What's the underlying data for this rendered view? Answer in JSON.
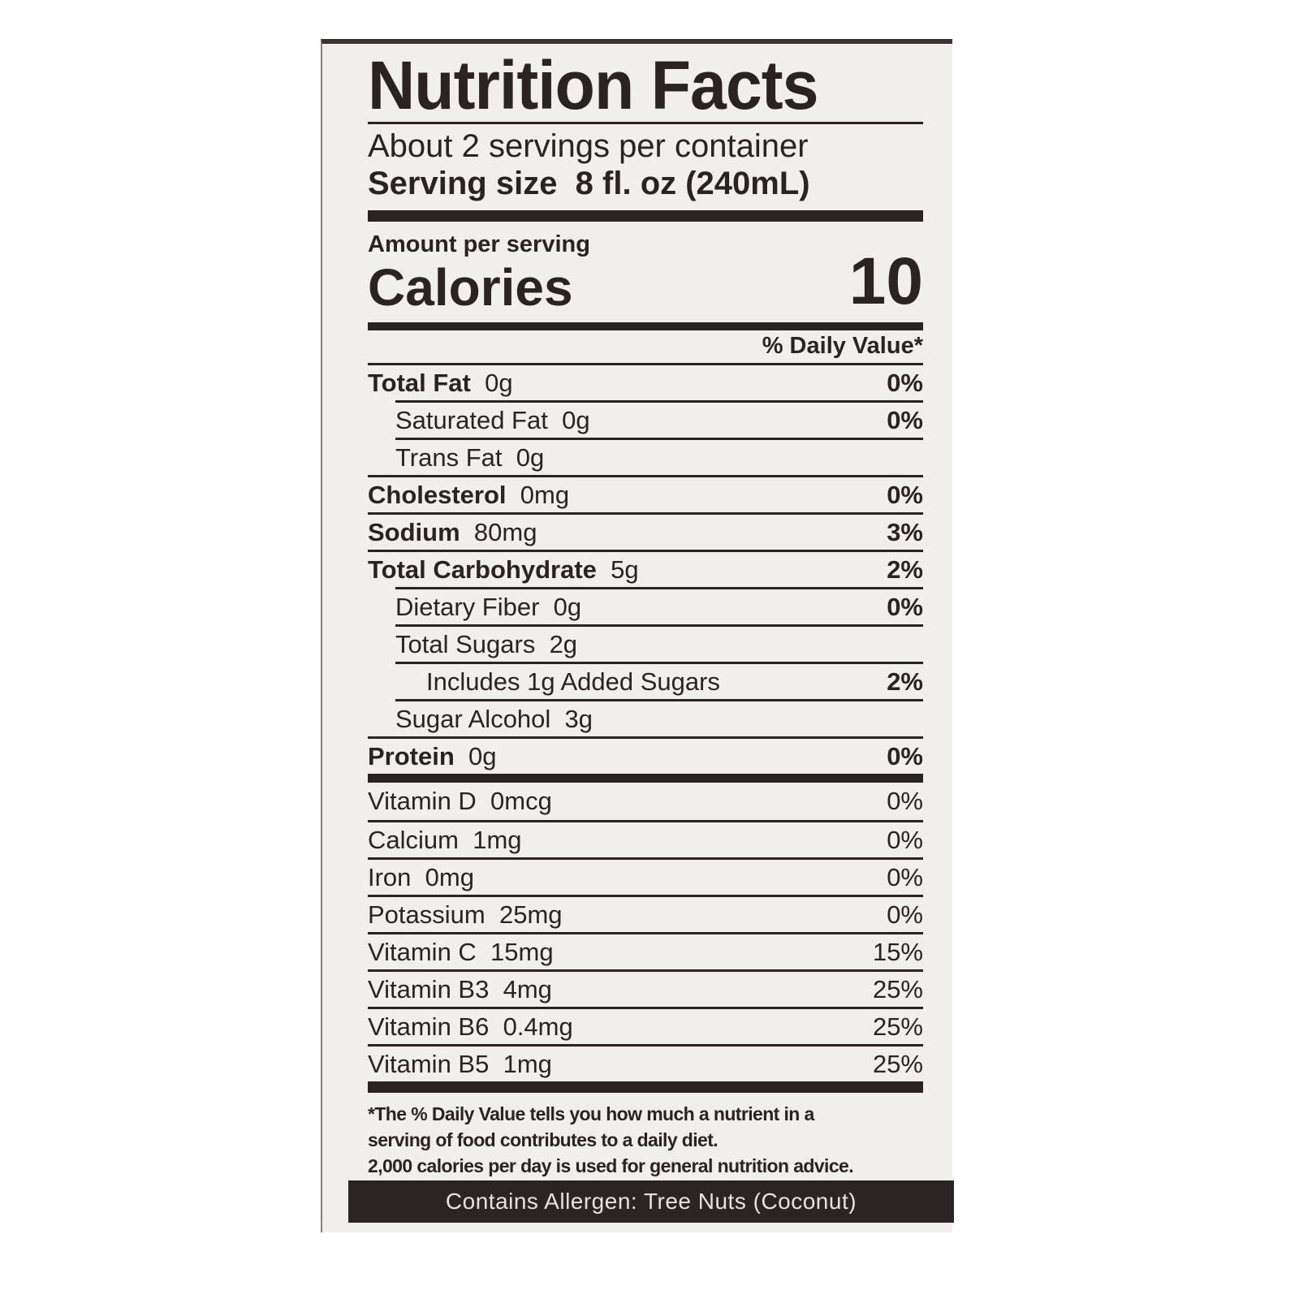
{
  "title": "Nutrition Facts",
  "servings_per_container": "About 2 servings per container",
  "serving_size_label": "Serving size",
  "serving_size_value": "8 fl. oz (240mL)",
  "amount_per_serving": "Amount per serving",
  "calories_label": "Calories",
  "calories_value": "10",
  "daily_value_header": "% Daily Value*",
  "nutrients": [
    {
      "name": "Total Fat",
      "amount": "0g",
      "dv": "0%"
    },
    {
      "name": "Saturated Fat",
      "amount": "0g",
      "dv": "0%"
    },
    {
      "name": "Trans Fat",
      "amount": "0g",
      "dv": ""
    },
    {
      "name": "Cholesterol",
      "amount": "0mg",
      "dv": "0%"
    },
    {
      "name": "Sodium",
      "amount": "80mg",
      "dv": "3%"
    },
    {
      "name": "Total Carbohydrate",
      "amount": "5g",
      "dv": "2%"
    },
    {
      "name": "Dietary Fiber",
      "amount": "0g",
      "dv": "0%"
    },
    {
      "name": "Total Sugars",
      "amount": "2g",
      "dv": ""
    },
    {
      "name": "Includes 1g Added Sugars",
      "amount": "",
      "dv": "2%"
    },
    {
      "name": "Sugar Alcohol",
      "amount": "3g",
      "dv": ""
    },
    {
      "name": "Protein",
      "amount": "0g",
      "dv": "0%"
    }
  ],
  "vitamins": [
    {
      "name": "Vitamin D",
      "amount": "0mcg",
      "dv": "0%"
    },
    {
      "name": "Calcium",
      "amount": "1mg",
      "dv": "0%"
    },
    {
      "name": "Iron",
      "amount": "0mg",
      "dv": "0%"
    },
    {
      "name": "Potassium",
      "amount": "25mg",
      "dv": "0%"
    },
    {
      "name": "Vitamin C",
      "amount": "15mg",
      "dv": "15%"
    },
    {
      "name": "Vitamin B3",
      "amount": "4mg",
      "dv": "25%"
    },
    {
      "name": "Vitamin B6",
      "amount": "0.4mg",
      "dv": "25%"
    },
    {
      "name": "Vitamin B5",
      "amount": "1mg",
      "dv": "25%"
    }
  ],
  "footnote": [
    "*The % Daily Value tells you how much a nutrient in a",
    "serving of food contributes to a daily diet.",
    "2,000 calories per day is used for general nutrition advice."
  ],
  "allergen": "Contains Allergen: Tree Nuts (Coconut)"
}
